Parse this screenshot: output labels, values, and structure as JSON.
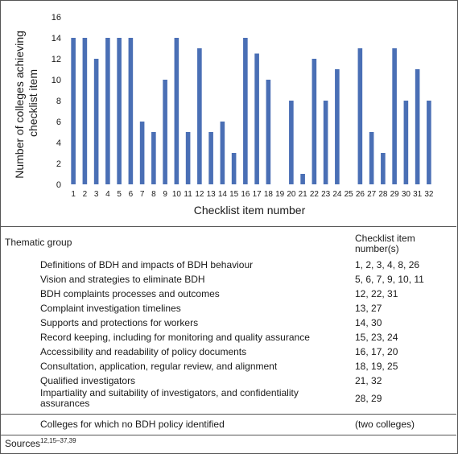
{
  "chart_data": {
    "type": "bar",
    "xlabel": "Checklist item number",
    "ylabel": "Number of colleges achieving checklist item",
    "ylim": [
      0,
      16
    ],
    "yticks": [
      0,
      2,
      4,
      6,
      8,
      10,
      12,
      14,
      16
    ],
    "grid": false,
    "bar_color": "#4a6fb5",
    "categories": [
      "1",
      "2",
      "3",
      "4",
      "5",
      "6",
      "7",
      "8",
      "9",
      "10",
      "11",
      "12",
      "13",
      "14",
      "15",
      "16",
      "17",
      "18",
      "19",
      "20",
      "21",
      "22",
      "23",
      "24",
      "25",
      "26",
      "27",
      "28",
      "29",
      "30",
      "31",
      "32"
    ],
    "values": [
      14,
      14,
      12,
      14,
      14,
      14,
      6,
      5,
      10,
      14,
      5,
      13,
      5,
      6,
      3,
      14,
      12.5,
      10,
      0,
      8,
      1,
      12,
      8,
      11,
      0,
      13,
      5,
      3,
      13,
      8,
      11,
      8
    ]
  },
  "table": {
    "header_group": "Thematic group",
    "header_items_line1": "Checklist item",
    "header_items_line2": "number(s)",
    "rows": [
      {
        "group": "Definitions of BDH and impacts of BDH behaviour",
        "items": "1, 2, 3, 4, 8, 26"
      },
      {
        "group": "Vision and strategies to eliminate BDH",
        "items": "5, 6, 7, 9, 10, 11"
      },
      {
        "group": "BDH complaints processes and outcomes",
        "items": "12, 22, 31"
      },
      {
        "group": "Complaint investigation timelines",
        "items": "13, 27"
      },
      {
        "group": "Supports and protections for workers",
        "items": "14, 30"
      },
      {
        "group": "Record keeping, including for monitoring and quality assurance",
        "items": "15, 23, 24"
      },
      {
        "group": "Accessibility and readability of policy documents",
        "items": "16, 17, 20"
      },
      {
        "group": "Consultation, application, regular review, and alignment",
        "items": "18, 19, 25"
      },
      {
        "group": "Qualified investigators",
        "items": "21, 32"
      },
      {
        "group": "Impartiality and suitability of investigators, and confidentiality assurances",
        "items": "28, 29"
      }
    ],
    "no_policy_label": "Colleges for which no BDH policy identified",
    "no_policy_value": "(two colleges)",
    "sources_label": "Sources",
    "sources_refs": "12,15–37,39"
  }
}
